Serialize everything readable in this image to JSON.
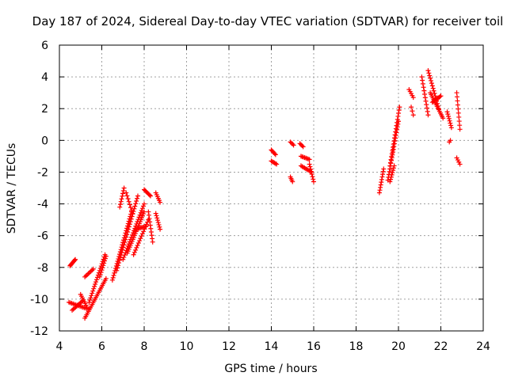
{
  "chart_data": {
    "type": "scatter",
    "title": "Day 187 of 2024, Sidereal Day-to-day VTEC variation (SDTVAR) for receiver toil",
    "xlabel": "GPS time / hours",
    "ylabel": "SDTVAR / TECUs",
    "xlim": [
      4,
      24
    ],
    "ylim": [
      -12,
      6
    ],
    "xticks": [
      4,
      6,
      8,
      10,
      12,
      14,
      16,
      18,
      20,
      22,
      24
    ],
    "yticks": [
      -12,
      -10,
      -8,
      -6,
      -4,
      -2,
      0,
      2,
      4,
      6
    ],
    "grid": true,
    "marker": "+",
    "color": "#ff0000",
    "series_segments": [
      {
        "name": "a1",
        "x0": 4.5,
        "x1": 4.75,
        "y0": -7.9,
        "y1": -7.5,
        "n": 10
      },
      {
        "name": "a2",
        "x0": 4.45,
        "x1": 5.3,
        "y0": -10.2,
        "y1": -10.6,
        "n": 14
      },
      {
        "name": "a3",
        "x0": 4.6,
        "x1": 5.1,
        "y0": -10.7,
        "y1": -10.1,
        "n": 10
      },
      {
        "name": "a4",
        "x0": 5.0,
        "x1": 5.3,
        "y0": -9.7,
        "y1": -10.5,
        "n": 8
      },
      {
        "name": "a5",
        "x0": 5.2,
        "x1": 5.6,
        "y0": -8.6,
        "y1": -8.1,
        "n": 8
      },
      {
        "name": "b1",
        "x0": 5.2,
        "x1": 6.2,
        "y0": -11.2,
        "y1": -8.7,
        "n": 24
      },
      {
        "name": "b2",
        "x0": 5.4,
        "x1": 6.15,
        "y0": -10.2,
        "y1": -7.2,
        "n": 22
      },
      {
        "name": "b3",
        "x0": 5.9,
        "x1": 6.2,
        "y0": -8.6,
        "y1": -7.3,
        "n": 10
      },
      {
        "name": "c1",
        "x0": 6.5,
        "x1": 7.4,
        "y0": -8.8,
        "y1": -4.5,
        "n": 30
      },
      {
        "name": "c2",
        "x0": 6.7,
        "x1": 7.7,
        "y0": -8.2,
        "y1": -3.5,
        "n": 30
      },
      {
        "name": "c3",
        "x0": 6.85,
        "x1": 7.05,
        "y0": -4.2,
        "y1": -3.0,
        "n": 8
      },
      {
        "name": "c4",
        "x0": 7.15,
        "x1": 7.45,
        "y0": -3.3,
        "y1": -4.6,
        "n": 8
      },
      {
        "name": "c5",
        "x0": 7.0,
        "x1": 8.0,
        "y0": -7.5,
        "y1": -4.0,
        "n": 26
      },
      {
        "name": "c6",
        "x0": 7.2,
        "x1": 8.0,
        "y0": -7.1,
        "y1": -4.5,
        "n": 22
      },
      {
        "name": "c7",
        "x0": 7.5,
        "x1": 8.2,
        "y0": -7.2,
        "y1": -5.0,
        "n": 16
      },
      {
        "name": "c8",
        "x0": 7.6,
        "x1": 8.1,
        "y0": -5.6,
        "y1": -5.4,
        "n": 10
      },
      {
        "name": "c9",
        "x0": 8.0,
        "x1": 8.3,
        "y0": -3.1,
        "y1": -3.5,
        "n": 8
      },
      {
        "name": "c10",
        "x0": 8.2,
        "x1": 8.4,
        "y0": -4.5,
        "y1": -6.4,
        "n": 10
      },
      {
        "name": "c11",
        "x0": 8.55,
        "x1": 8.75,
        "y0": -3.3,
        "y1": -3.9,
        "n": 6
      },
      {
        "name": "c12",
        "x0": 8.55,
        "x1": 8.75,
        "y0": -4.6,
        "y1": -5.6,
        "n": 8
      },
      {
        "name": "d1",
        "x0": 14.0,
        "x1": 14.2,
        "y0": -0.6,
        "y1": -0.9,
        "n": 6
      },
      {
        "name": "d2",
        "x0": 14.0,
        "x1": 14.25,
        "y0": -1.3,
        "y1": -1.5,
        "n": 6
      },
      {
        "name": "d3",
        "x0": 14.9,
        "x1": 15.0,
        "y0": -2.3,
        "y1": -2.6,
        "n": 4
      },
      {
        "name": "d4",
        "x0": 14.9,
        "x1": 15.05,
        "y0": -0.1,
        "y1": -0.3,
        "n": 4
      },
      {
        "name": "d5",
        "x0": 15.35,
        "x1": 15.5,
        "y0": -0.2,
        "y1": -0.4,
        "n": 4
      },
      {
        "name": "d6",
        "x0": 15.4,
        "x1": 15.8,
        "y0": -1.0,
        "y1": -1.2,
        "n": 8
      },
      {
        "name": "d7",
        "x0": 15.4,
        "x1": 15.9,
        "y0": -1.6,
        "y1": -2.0,
        "n": 10
      },
      {
        "name": "d8",
        "x0": 15.8,
        "x1": 16.0,
        "y0": -1.5,
        "y1": -2.6,
        "n": 8
      },
      {
        "name": "e1",
        "x0": 19.1,
        "x1": 19.3,
        "y0": -3.3,
        "y1": -1.8,
        "n": 10
      },
      {
        "name": "e2",
        "x0": 19.5,
        "x1": 20.0,
        "y0": -2.5,
        "y1": 1.2,
        "n": 22
      },
      {
        "name": "e3",
        "x0": 19.6,
        "x1": 20.05,
        "y0": -1.6,
        "y1": 2.1,
        "n": 20
      },
      {
        "name": "e4",
        "x0": 19.6,
        "x1": 19.8,
        "y0": -2.6,
        "y1": -1.6,
        "n": 8
      },
      {
        "name": "f1",
        "x0": 20.5,
        "x1": 20.7,
        "y0": 3.2,
        "y1": 2.7,
        "n": 5
      },
      {
        "name": "f2",
        "x0": 20.6,
        "x1": 20.7,
        "y0": 2.1,
        "y1": 1.6,
        "n": 3
      },
      {
        "name": "f3",
        "x0": 21.1,
        "x1": 21.4,
        "y0": 4.0,
        "y1": 1.6,
        "n": 12
      },
      {
        "name": "f4",
        "x0": 21.4,
        "x1": 21.9,
        "y0": 4.4,
        "y1": 2.0,
        "n": 16
      },
      {
        "name": "f5",
        "x0": 21.5,
        "x1": 22.1,
        "y0": 3.0,
        "y1": 1.4,
        "n": 16
      },
      {
        "name": "f6",
        "x0": 21.6,
        "x1": 22.0,
        "y0": 2.4,
        "y1": 2.8,
        "n": 10
      },
      {
        "name": "f7",
        "x0": 22.3,
        "x1": 22.5,
        "y0": 1.8,
        "y1": 0.8,
        "n": 8
      },
      {
        "name": "f8",
        "x0": 22.4,
        "x1": 22.45,
        "y0": -0.1,
        "y1": 0.0,
        "n": 2
      },
      {
        "name": "f9",
        "x0": 22.75,
        "x1": 22.9,
        "y0": 3.0,
        "y1": 0.7,
        "n": 10
      },
      {
        "name": "f10",
        "x0": 22.75,
        "x1": 22.9,
        "y0": -1.1,
        "y1": -1.5,
        "n": 4
      }
    ]
  }
}
